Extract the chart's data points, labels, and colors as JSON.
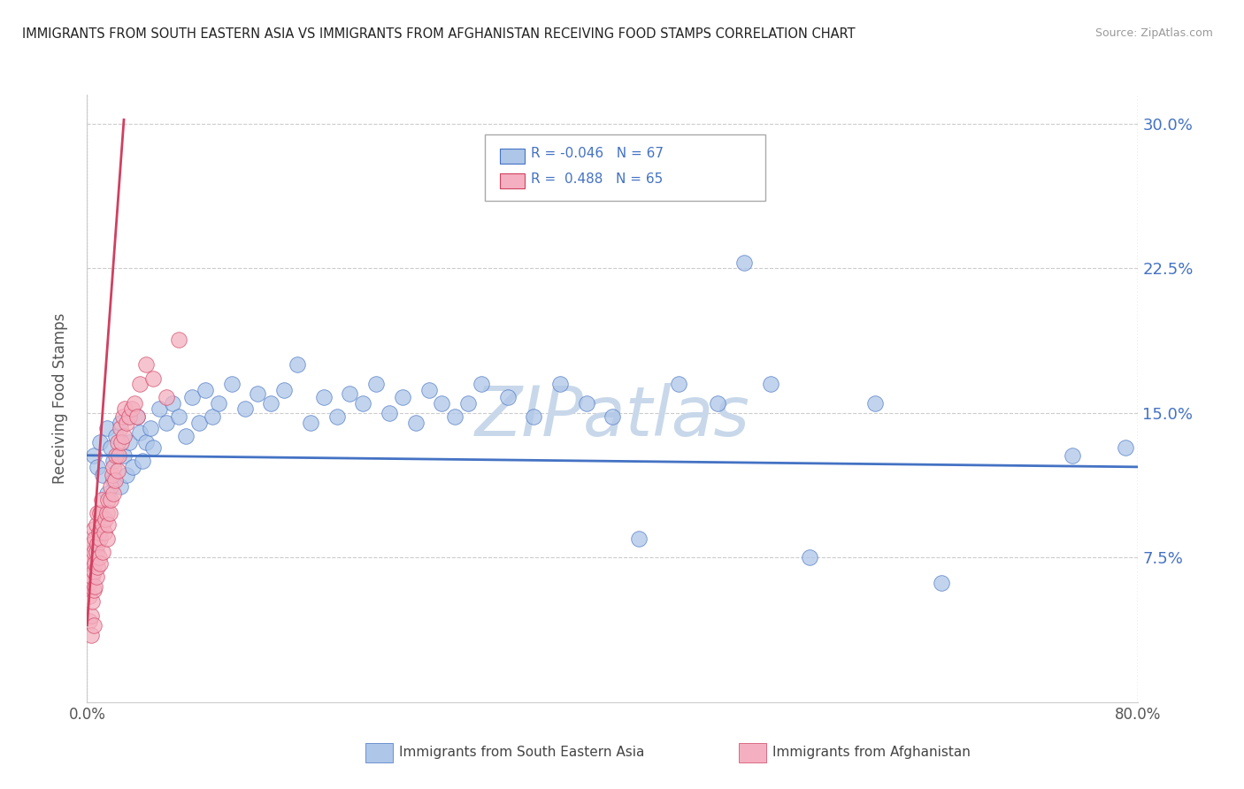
{
  "title": "IMMIGRANTS FROM SOUTH EASTERN ASIA VS IMMIGRANTS FROM AFGHANISTAN RECEIVING FOOD STAMPS CORRELATION CHART",
  "source": "Source: ZipAtlas.com",
  "ylabel": "Receiving Food Stamps",
  "yticks": [
    "7.5%",
    "15.0%",
    "22.5%",
    "30.0%"
  ],
  "ytick_vals": [
    0.075,
    0.15,
    0.225,
    0.3
  ],
  "xlim": [
    0.0,
    0.8
  ],
  "ylim": [
    0.0,
    0.315
  ],
  "legend_label1": "Immigrants from South Eastern Asia",
  "legend_label2": "Immigrants from Afghanistan",
  "R1": -0.046,
  "N1": 67,
  "R2": 0.488,
  "N2": 65,
  "color_blue": "#aec6e8",
  "color_pink": "#f4b0c0",
  "trendline_blue": "#4472c4",
  "trendline_pink": "#d04060",
  "watermark": "ZIPatlas",
  "watermark_color": "#c8d8ea",
  "blue_scatter_x": [
    0.005,
    0.008,
    0.01,
    0.012,
    0.015,
    0.015,
    0.018,
    0.02,
    0.02,
    0.022,
    0.025,
    0.025,
    0.028,
    0.03,
    0.032,
    0.035,
    0.038,
    0.04,
    0.042,
    0.045,
    0.048,
    0.05,
    0.055,
    0.06,
    0.065,
    0.07,
    0.075,
    0.08,
    0.085,
    0.09,
    0.095,
    0.1,
    0.11,
    0.12,
    0.13,
    0.14,
    0.15,
    0.16,
    0.17,
    0.18,
    0.19,
    0.2,
    0.21,
    0.22,
    0.23,
    0.24,
    0.25,
    0.26,
    0.27,
    0.28,
    0.29,
    0.3,
    0.32,
    0.34,
    0.36,
    0.38,
    0.4,
    0.42,
    0.45,
    0.48,
    0.5,
    0.52,
    0.55,
    0.6,
    0.65,
    0.75,
    0.79
  ],
  "blue_scatter_y": [
    0.128,
    0.122,
    0.135,
    0.118,
    0.142,
    0.108,
    0.132,
    0.125,
    0.115,
    0.138,
    0.145,
    0.112,
    0.128,
    0.118,
    0.135,
    0.122,
    0.148,
    0.14,
    0.125,
    0.135,
    0.142,
    0.132,
    0.152,
    0.145,
    0.155,
    0.148,
    0.138,
    0.158,
    0.145,
    0.162,
    0.148,
    0.155,
    0.165,
    0.152,
    0.16,
    0.155,
    0.162,
    0.175,
    0.145,
    0.158,
    0.148,
    0.16,
    0.155,
    0.165,
    0.15,
    0.158,
    0.145,
    0.162,
    0.155,
    0.148,
    0.155,
    0.165,
    0.158,
    0.148,
    0.165,
    0.155,
    0.148,
    0.085,
    0.165,
    0.155,
    0.228,
    0.165,
    0.075,
    0.155,
    0.062,
    0.128,
    0.132
  ],
  "pink_scatter_x": [
    0.002,
    0.002,
    0.002,
    0.002,
    0.003,
    0.003,
    0.003,
    0.004,
    0.004,
    0.004,
    0.004,
    0.005,
    0.005,
    0.005,
    0.005,
    0.005,
    0.006,
    0.006,
    0.006,
    0.007,
    0.007,
    0.007,
    0.008,
    0.008,
    0.008,
    0.009,
    0.009,
    0.01,
    0.01,
    0.01,
    0.011,
    0.012,
    0.012,
    0.013,
    0.014,
    0.015,
    0.015,
    0.016,
    0.016,
    0.017,
    0.018,
    0.018,
    0.019,
    0.02,
    0.02,
    0.021,
    0.022,
    0.023,
    0.023,
    0.024,
    0.025,
    0.026,
    0.027,
    0.028,
    0.029,
    0.03,
    0.032,
    0.034,
    0.036,
    0.038,
    0.04,
    0.045,
    0.05,
    0.06,
    0.07
  ],
  "pink_scatter_y": [
    0.042,
    0.055,
    0.062,
    0.072,
    0.078,
    0.045,
    0.035,
    0.052,
    0.065,
    0.075,
    0.082,
    0.04,
    0.058,
    0.068,
    0.078,
    0.09,
    0.06,
    0.072,
    0.085,
    0.065,
    0.078,
    0.092,
    0.07,
    0.082,
    0.098,
    0.075,
    0.088,
    0.072,
    0.085,
    0.098,
    0.105,
    0.078,
    0.092,
    0.088,
    0.095,
    0.085,
    0.098,
    0.092,
    0.105,
    0.098,
    0.112,
    0.105,
    0.118,
    0.108,
    0.122,
    0.115,
    0.128,
    0.12,
    0.135,
    0.128,
    0.142,
    0.135,
    0.148,
    0.138,
    0.152,
    0.145,
    0.148,
    0.152,
    0.155,
    0.148,
    0.165,
    0.175,
    0.168,
    0.158,
    0.188
  ],
  "pink_trendline_x0": 0.0,
  "pink_trendline_x1": 0.028,
  "pink_trendline_y0": 0.04,
  "pink_trendline_y1": 0.302,
  "blue_trendline_x0": 0.0,
  "blue_trendline_x1": 0.8,
  "blue_trendline_y0": 0.128,
  "blue_trendline_y1": 0.122
}
